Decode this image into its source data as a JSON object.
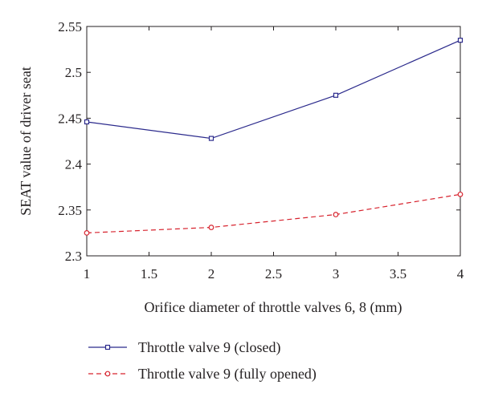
{
  "chart_data": {
    "type": "line",
    "xlabel": "Orifice diameter of throttle valves 6, 8 (mm)",
    "ylabel": "SEAT value of driver seat",
    "xlim": [
      1,
      4
    ],
    "ylim": [
      2.3,
      2.55
    ],
    "x_ticks": [
      "1",
      "1.5",
      "2",
      "2.5",
      "3",
      "3.5",
      "4"
    ],
    "y_ticks": [
      "2.3",
      "2.35",
      "2.4",
      "2.45",
      "2.5",
      "2.55"
    ],
    "grid": false,
    "legend_position": "bottom",
    "x": [
      1,
      2,
      3,
      4
    ],
    "series": [
      {
        "name": "Throttle valve 9 (closed)",
        "values": [
          2.446,
          2.428,
          2.475,
          2.535
        ],
        "color": "#2b2a8c",
        "line_style": "solid",
        "marker": "square"
      },
      {
        "name": "Throttle valve 9 (fully opened)",
        "values": [
          2.325,
          2.331,
          2.345,
          2.367
        ],
        "color": "#d7232e",
        "line_style": "dashed",
        "marker": "circle"
      }
    ]
  }
}
